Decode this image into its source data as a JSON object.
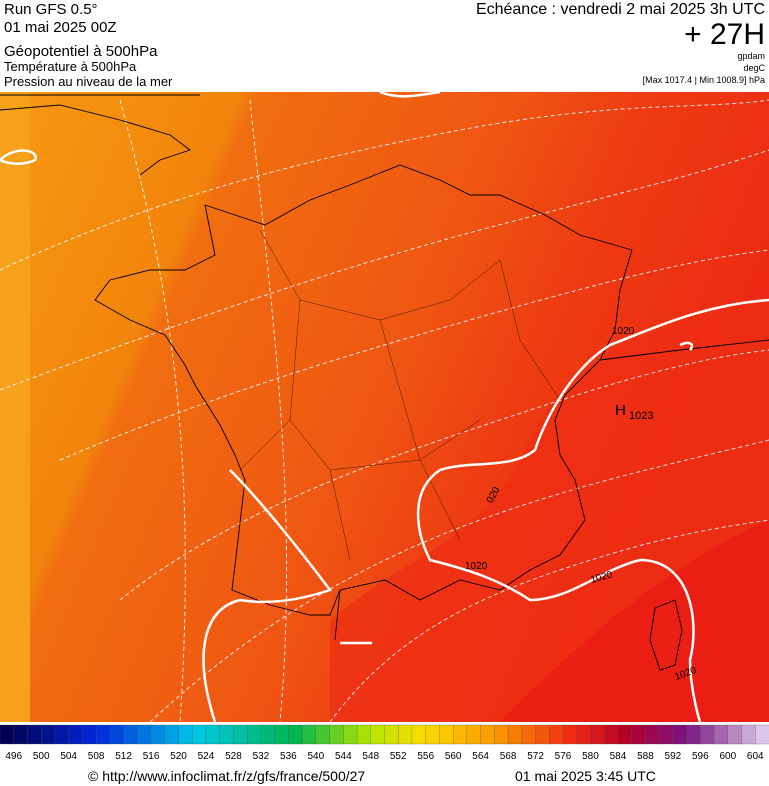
{
  "header": {
    "run": "Run GFS 0.5°",
    "run_date": "01 mai 2025 00Z",
    "field_1": "Géopotentiel à 500hPa",
    "field_2": "Température à 500hPa",
    "field_3": "Pression au niveau de la mer",
    "valid": "Echéance : vendredi 2 mai 2025 3h UTC",
    "lead": "+ 27H",
    "unit_1": "gpdam",
    "unit_2": "degC",
    "extremes": "[Max 1017.4 | Min 1008.9] hPa"
  },
  "map": {
    "isobar_labels": [
      "1020",
      "020",
      "1020",
      "1020",
      "1020"
    ],
    "high": {
      "symbol": "H",
      "value": "1023"
    }
  },
  "colorbar": {
    "ticks": [
      496,
      500,
      504,
      508,
      512,
      516,
      520,
      524,
      528,
      532,
      536,
      540,
      544,
      548,
      552,
      556,
      560,
      564,
      568,
      572,
      576,
      580,
      584,
      588,
      592,
      596,
      600,
      604
    ]
  },
  "footer": {
    "source": "© http://www.infoclimat.fr/z/gfs/france/500/27",
    "issued": "01 mai 2025  3:45 UTC"
  }
}
